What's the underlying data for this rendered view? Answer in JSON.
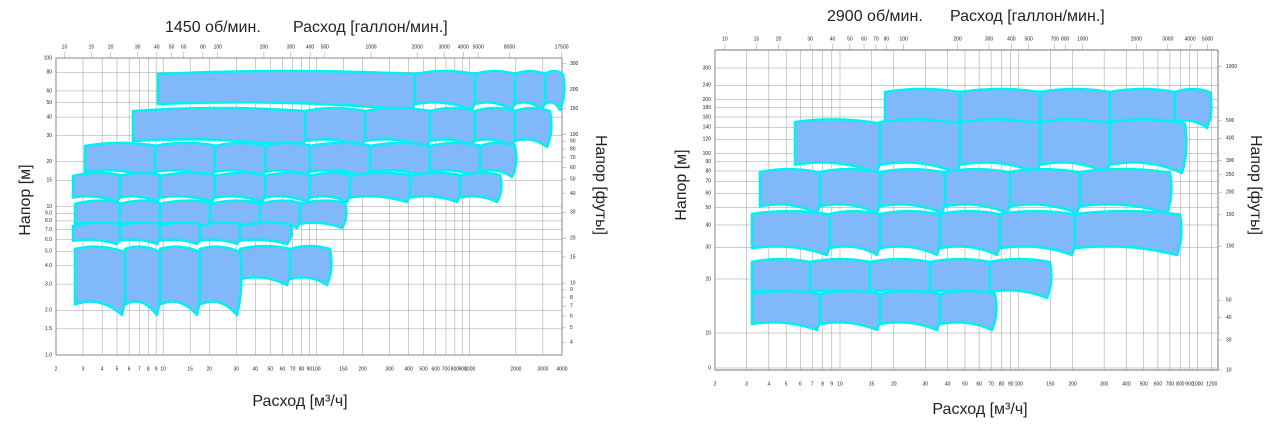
{
  "panels": [
    {
      "speed": "1450 об/мин.",
      "flow_gpm_title": "Расход [галлон/мин.]",
      "y_label_left": "Напор [м]",
      "y_label_right": "Напор [футы]",
      "x_label": "Расход [м³/ч]",
      "bottom_ticks": [
        2,
        3,
        4,
        5,
        6,
        7,
        8,
        9,
        10,
        15,
        20,
        30,
        40,
        50,
        60,
        70,
        80,
        90,
        100,
        150,
        200,
        300,
        400,
        500,
        600,
        700,
        800,
        900,
        1000,
        2000,
        3000,
        4000
      ],
      "top_ticks": [
        10,
        15,
        20,
        30,
        40,
        50,
        60,
        80,
        100,
        200,
        300,
        400,
        500,
        1000,
        2000,
        3000,
        4000,
        5000,
        8000,
        17500
      ],
      "left_ticks": [
        {
          "value": 1,
          "label": "1.0"
        },
        {
          "value": 1.5,
          "label": "1.5"
        },
        {
          "value": 2,
          "label": "2.0"
        },
        {
          "value": 3,
          "label": "3.0"
        },
        {
          "value": 4,
          "label": "4.0"
        },
        {
          "value": 5,
          "label": "5.0"
        },
        {
          "value": 6,
          "label": "6.0"
        },
        {
          "value": 7,
          "label": "7.0"
        },
        {
          "value": 8,
          "label": "8.0"
        },
        {
          "value": 9,
          "label": "9.0"
        },
        10,
        15,
        20,
        30,
        40,
        50,
        60,
        80,
        100
      ],
      "right_ticks": [
        4,
        5,
        6,
        7,
        8,
        9,
        10,
        15,
        20,
        30,
        40,
        50,
        60,
        70,
        80,
        90,
        100,
        150,
        200,
        300
      ]
    },
    {
      "speed": "2900 об/мин.",
      "flow_gpm_title": "Расход [галлон/мин.]",
      "y_label_left": "Напор [м]",
      "y_label_right": "Напор [футы]",
      "x_label": "Расход [м³/ч]",
      "bottom_ticks": [
        2,
        3,
        4,
        5,
        6,
        7,
        8,
        9,
        10,
        15,
        20,
        30,
        40,
        50,
        60,
        70,
        80,
        90,
        100,
        150,
        200,
        300,
        400,
        500,
        600,
        700,
        800,
        900,
        1000,
        1200
      ],
      "top_ticks": [
        10,
        15,
        20,
        30,
        40,
        50,
        60,
        70,
        80,
        100,
        200,
        300,
        400,
        500,
        700,
        800,
        1000,
        2000,
        3000,
        4000,
        5000
      ],
      "left_ticks": [
        0,
        10,
        20,
        30,
        40,
        50,
        60,
        70,
        80,
        90,
        100,
        120,
        140,
        160,
        180,
        200,
        240,
        300
      ],
      "right_ticks": [
        10,
        30,
        40,
        50,
        100,
        150,
        200,
        250,
        300,
        400,
        500,
        1000
      ]
    }
  ]
}
